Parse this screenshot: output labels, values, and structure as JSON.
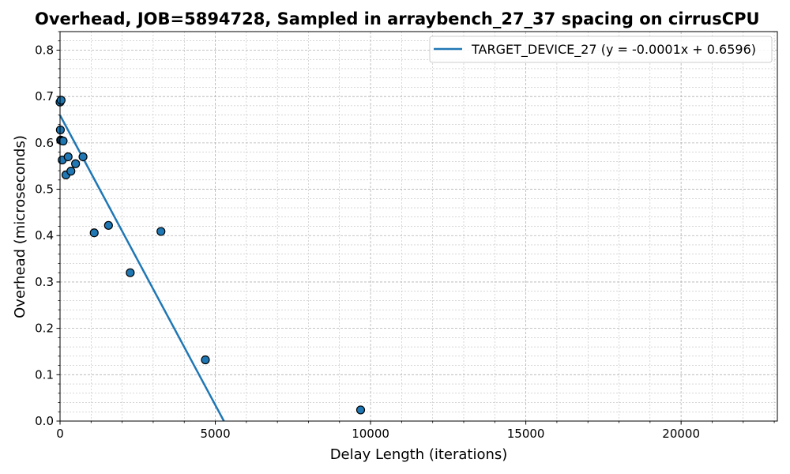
{
  "chart_data": {
    "type": "scatter",
    "title": "Overhead, JOB=5894728, Sampled in arraybench_27_37 spacing on cirrusCPU",
    "xlabel": "Delay Length (iterations)",
    "ylabel": "Overhead (microseconds)",
    "xlim": [
      0,
      23100
    ],
    "ylim": [
      0,
      0.84
    ],
    "xticks": [
      0,
      5000,
      10000,
      15000,
      20000
    ],
    "xtick_labels": [
      "0",
      "5000",
      "10000",
      "15000",
      "20000"
    ],
    "yticks": [
      0.0,
      0.1,
      0.2,
      0.3,
      0.4,
      0.5,
      0.6,
      0.7,
      0.8
    ],
    "ytick_labels": [
      "0.0",
      "0.1",
      "0.2",
      "0.3",
      "0.4",
      "0.5",
      "0.6",
      "0.7",
      "0.8"
    ],
    "grid": true,
    "legend_position": "top-right",
    "series": [
      {
        "name": "TARGET_DEVICE_27",
        "kind": "points",
        "color": "#1f77b4",
        "edge_color": "#000000",
        "x": [
          0,
          10,
          20,
          35,
          50,
          70,
          100,
          190,
          260,
          350,
          500,
          740,
          1100,
          1560,
          2260,
          3250,
          4680,
          9680
        ],
        "y": [
          0.688,
          0.628,
          0.606,
          0.692,
          0.605,
          0.563,
          0.604,
          0.531,
          0.57,
          0.539,
          0.555,
          0.57,
          0.406,
          0.422,
          0.32,
          0.409,
          0.132,
          0.024
        ]
      },
      {
        "name": "TARGET_DEVICE_27 (y = -0.0001x + 0.6596)",
        "kind": "fit-line",
        "color": "#1f77b4",
        "slope": -0.000125,
        "intercept": 0.6596
      }
    ]
  }
}
